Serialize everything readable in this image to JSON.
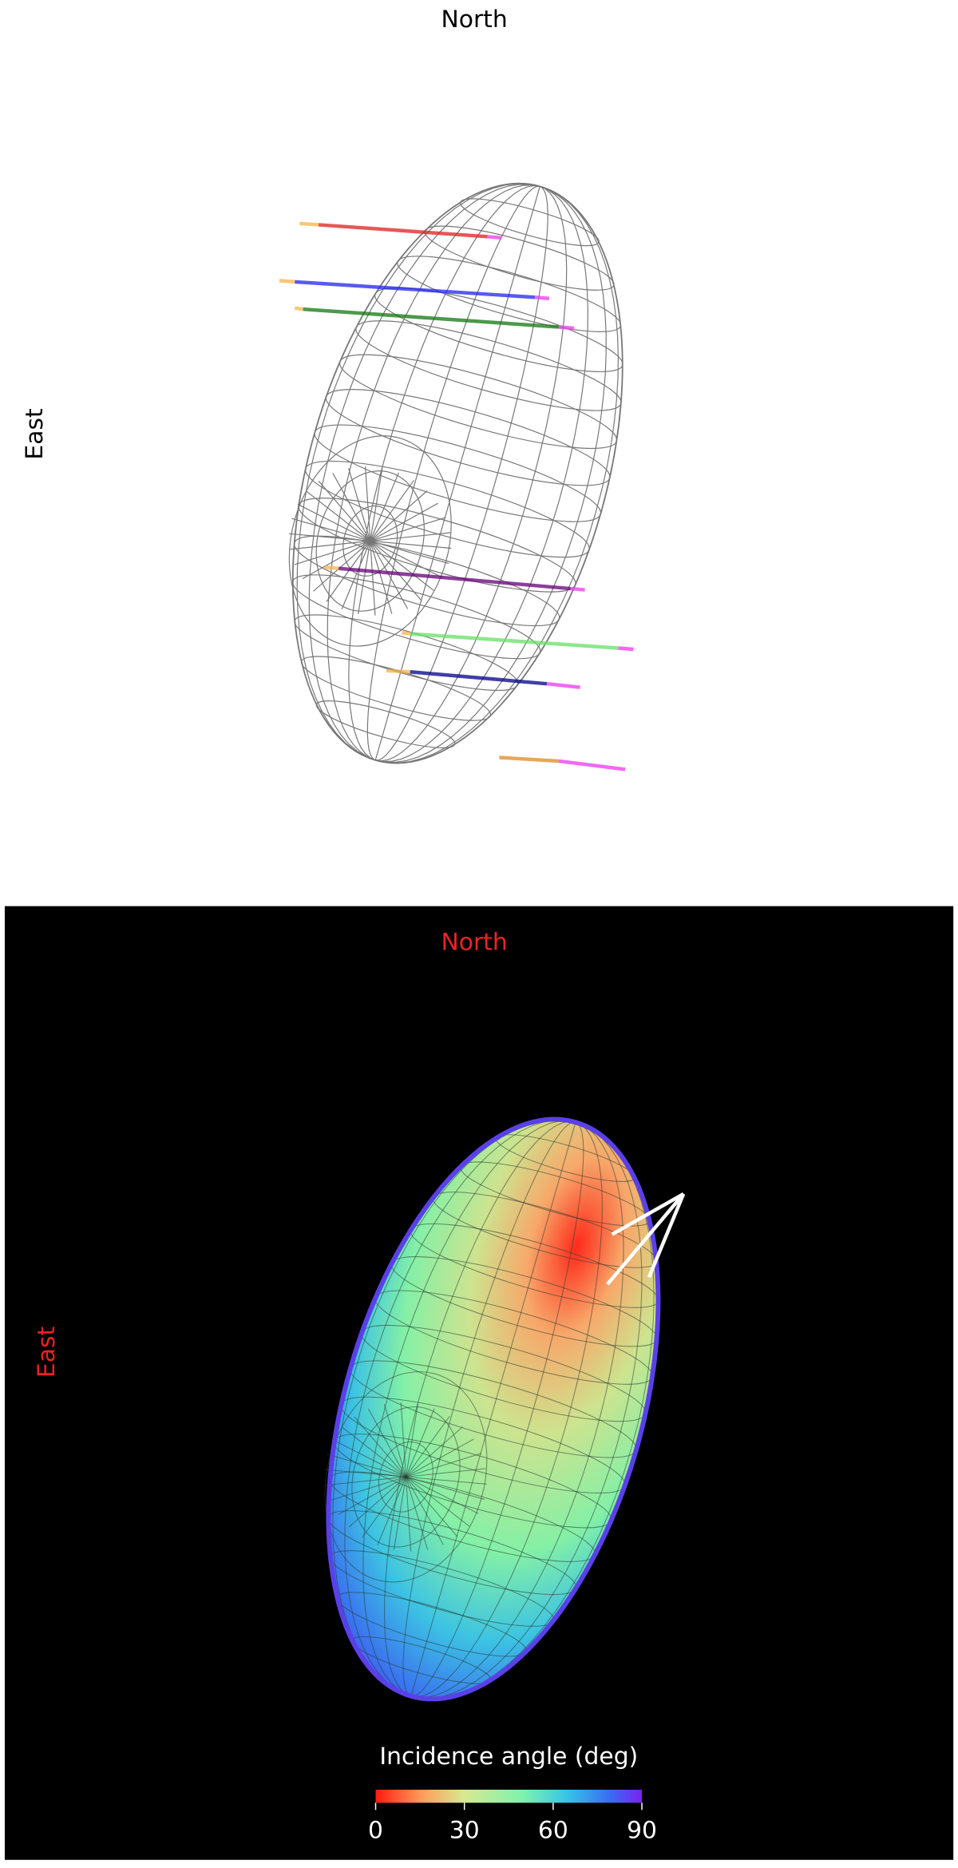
{
  "top_panel": {
    "north_label": "North",
    "east_label": "East"
  },
  "bottom_panel": {
    "north_label": "North",
    "east_label": "East",
    "colorbar": {
      "label": "Incidence angle (deg)",
      "lim": [
        0,
        90
      ],
      "ticks": [
        0,
        30,
        60,
        90
      ]
    }
  }
}
